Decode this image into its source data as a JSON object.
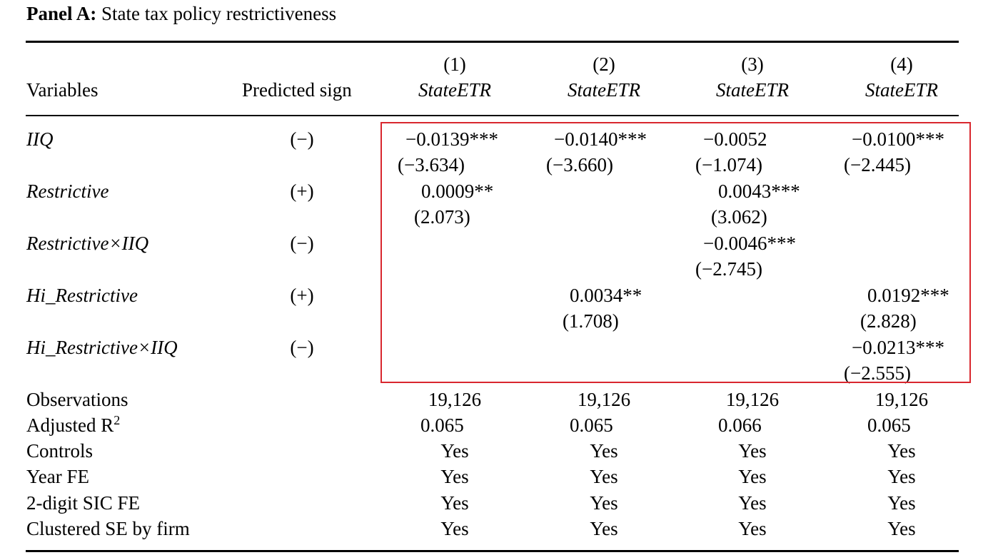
{
  "panel": {
    "label": "Panel A:",
    "title": "State tax policy restrictiveness"
  },
  "header": {
    "variables": "Variables",
    "predicted_sign": "Predicted sign",
    "columns": [
      {
        "num": "(1)",
        "dep": "StateETR"
      },
      {
        "num": "(2)",
        "dep": "StateETR"
      },
      {
        "num": "(3)",
        "dep": "StateETR"
      },
      {
        "num": "(4)",
        "dep": "StateETR"
      }
    ]
  },
  "variables": [
    {
      "name": "IIQ",
      "sign": "(−)"
    },
    {
      "name": "Restrictive",
      "sign": "(+)"
    },
    {
      "name": "Restrictive×IIQ",
      "sign": "(−)"
    },
    {
      "name": "Hi_Restrictive",
      "sign": "(+)"
    },
    {
      "name": "Hi_Restrictive×IIQ",
      "sign": "(−)"
    }
  ],
  "coefficients": {
    "iiq": {
      "c1": {
        "coef": "−0.0139***",
        "t": "(−3.634)"
      },
      "c2": {
        "coef": "−0.0140***",
        "t": "(−3.660)"
      },
      "c3": {
        "coef": "−0.0052",
        "t": "(−1.074)"
      },
      "c4": {
        "coef": "−0.0100***",
        "t": "(−2.445)"
      }
    },
    "restrictive": {
      "c1": {
        "coef": "0.0009**",
        "t": "(2.073)"
      },
      "c3": {
        "coef": "0.0043***",
        "t": "(3.062)"
      }
    },
    "restrictive_iiq": {
      "c3": {
        "coef": "−0.0046***",
        "t": "(−2.745)"
      }
    },
    "hi_restrictive": {
      "c2": {
        "coef": "0.0034**",
        "t": "(1.708)"
      },
      "c4": {
        "coef": "0.0192***",
        "t": "(2.828)"
      }
    },
    "hi_restrictive_iiq": {
      "c4": {
        "coef": "−0.0213***",
        "t": "(−2.555)"
      }
    }
  },
  "stats": [
    {
      "label": "Observations",
      "values": [
        "19,126",
        "19,126",
        "19,126",
        "19,126"
      ]
    },
    {
      "label": "Adjusted R",
      "sup": "2",
      "values": [
        "0.065",
        "0.065",
        "0.066",
        "0.065"
      ]
    },
    {
      "label": "Controls",
      "values": [
        "Yes",
        "Yes",
        "Yes",
        "Yes"
      ]
    },
    {
      "label": "Year FE",
      "values": [
        "Yes",
        "Yes",
        "Yes",
        "Yes"
      ]
    },
    {
      "label": "2-digit SIC FE",
      "values": [
        "Yes",
        "Yes",
        "Yes",
        "Yes"
      ]
    },
    {
      "label": "Clustered SE by firm",
      "values": [
        "Yes",
        "Yes",
        "Yes",
        "Yes"
      ]
    }
  ],
  "colors": {
    "highlight_border": "#d9272e"
  }
}
